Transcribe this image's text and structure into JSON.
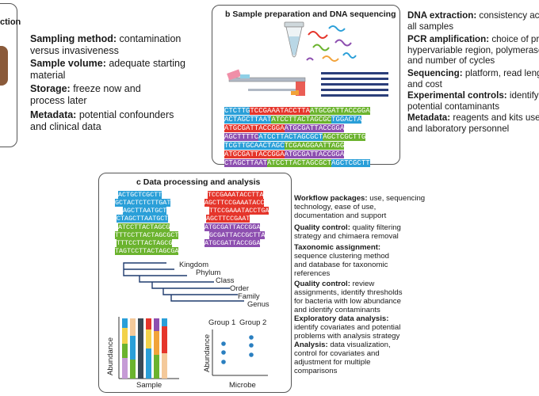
{
  "panel_a": {
    "title_fragment": "ction",
    "items": [
      {
        "term": "Sampling method:",
        "desc": [
          "contamination",
          "versus invasiveness"
        ]
      },
      {
        "term": "Sample volume:",
        "desc": [
          "adequate starting",
          "material"
        ]
      },
      {
        "term": "Storage:",
        "desc": [
          "freeze now and",
          "process later"
        ]
      },
      {
        "term": "Metadata:",
        "desc": [
          "potential confounders",
          "and clinical data"
        ]
      }
    ]
  },
  "panel_b": {
    "title": "b  Sample preparation and DNA sequencing",
    "sequences": [
      [
        "CTCTTG",
        "TCCGAAATACCTTA",
        "ATGCGATTACCGGA"
      ],
      [
        "ACTAGCTTAAT",
        "ATCCTTACTAGCGC",
        "TGGACTA"
      ],
      [
        "ATGCGATTACCGGA",
        "ATGCGATTACCGGA"
      ],
      [
        "AGCTTTTC",
        "ATCCTTACTAGCGCT",
        "AGCTCGCTTG"
      ],
      [
        "TCGTTGCAACTAGC",
        "TCGAAGGAATTAGG"
      ],
      [
        "ATGCGATTACCGGA",
        "ATGCGATTACCGGA"
      ],
      [
        "CTAGCTTAAT",
        "ATCCTTACTAGCGCT",
        "AGCTCGCTT"
      ]
    ]
  },
  "side_b": {
    "items": [
      {
        "term": "DNA extraction:",
        "desc": [
          "consistency acro",
          "all samples"
        ]
      },
      {
        "term": "PCR amplification:",
        "desc": [
          "choice of prime",
          "hypervariable region, polymerase",
          "and number of cycles"
        ]
      },
      {
        "term": "Sequencing:",
        "desc": [
          "platform, read length",
          "and cost"
        ]
      },
      {
        "term": "Experimental controls:",
        "desc": [
          "identify",
          "potential contaminants"
        ]
      },
      {
        "term": "Metadata:",
        "desc": [
          "reagents and kits used",
          "and laboratory personnel"
        ]
      }
    ]
  },
  "panel_c": {
    "title": "c  Data processing and analysis",
    "reads_blue": [
      "ACTGCTCGCTT",
      "GCTACTCTCTTGAT",
      "AGCTTAATGCT",
      "CTAGCTTAATGCT"
    ],
    "reads_red": [
      "TCCGAAATACCTTA",
      "AGCTTCCGAAATACC",
      "TTCCGAAATACCTGA",
      "AGCTTCCGAAT"
    ],
    "reads_green": [
      "ATCCTTACTAGCG",
      "TTTCCTTACTAGCGCT",
      "TTTCCTTACTAGCG",
      "TAGTCCTTACTAGCGA"
    ],
    "reads_purple": [
      "ATGCGATTACCGGA",
      "GCGATTACCGCTTA",
      "ATGCGATTACCGGA"
    ],
    "taxonomy": [
      "Kingdom",
      "Phylum",
      "Class",
      "Order",
      "Family",
      "Genus"
    ],
    "bar_ylabel": "Abundance",
    "bar_xlabel": "Sample",
    "dot_group1": "Group 1",
    "dot_group2": "Group 2",
    "dot_ylabel": "Abundance",
    "dot_xlabel": "Microbe",
    "items": [
      {
        "term": "Workflow packages:",
        "desc": [
          "use, sequencing",
          "technology, ease of use,",
          "documentation and support"
        ]
      },
      {
        "term": "Quality control:",
        "desc": [
          "quality filtering",
          "strategy and chimaera removal"
        ]
      },
      {
        "term": "Taxonomic assignment:",
        "desc": [
          "",
          "sequence clustering method",
          "and database for taxonomic",
          "references"
        ]
      },
      {
        "term": "Quality control:",
        "desc": [
          "review",
          "assignments, identify thresholds",
          "for bacteria with low abundance",
          "and identify contaminants"
        ]
      },
      {
        "term": "Exploratory data analysis:",
        "desc": [
          "",
          "identify covariates and potential",
          "problems with analysis strategy"
        ]
      },
      {
        "term": "Analysis:",
        "desc": [
          "data visualization,",
          "control for covariates and",
          "adjustment for multiple",
          "comparisons"
        ]
      }
    ]
  },
  "colors": {
    "seq_blue": "#2a9fd8",
    "seq_red": "#e5352b",
    "seq_green": "#6bb32e",
    "seq_purple": "#8d4fb0",
    "navy_bars": "#2b3e7a",
    "panel_border": "#555555"
  }
}
